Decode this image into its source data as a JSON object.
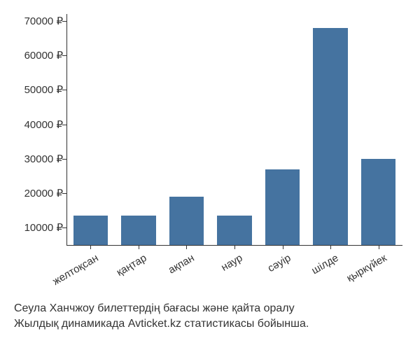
{
  "chart": {
    "type": "bar",
    "categories": [
      "желтоқсан",
      "қаңтар",
      "ақпан",
      "наур",
      "сәуір",
      "шілде",
      "қыркүйек"
    ],
    "values": [
      13500,
      13500,
      19000,
      13500,
      27000,
      68000,
      30000
    ],
    "bar_color": "#4573a0",
    "y_ticks": [
      10000,
      20000,
      30000,
      40000,
      50000,
      60000,
      70000
    ],
    "y_tick_labels": [
      "10000 ₽",
      "20000 ₽",
      "30000 ₽",
      "40000 ₽",
      "50000 ₽",
      "60000 ₽",
      "70000 ₽"
    ],
    "y_min": 5000,
    "y_max": 72000,
    "bar_width_ratio": 0.72,
    "label_fontsize": 15,
    "label_color": "#333333",
    "background_color": "#ffffff",
    "axis_color": "#333333",
    "x_label_rotation": -30
  },
  "caption": {
    "line1": "Сеула Ханчжоу билеттердің бағасы және қайта оралу",
    "line2": "Жылдық динамикада Avticket.kz статистикасы бойынша."
  }
}
